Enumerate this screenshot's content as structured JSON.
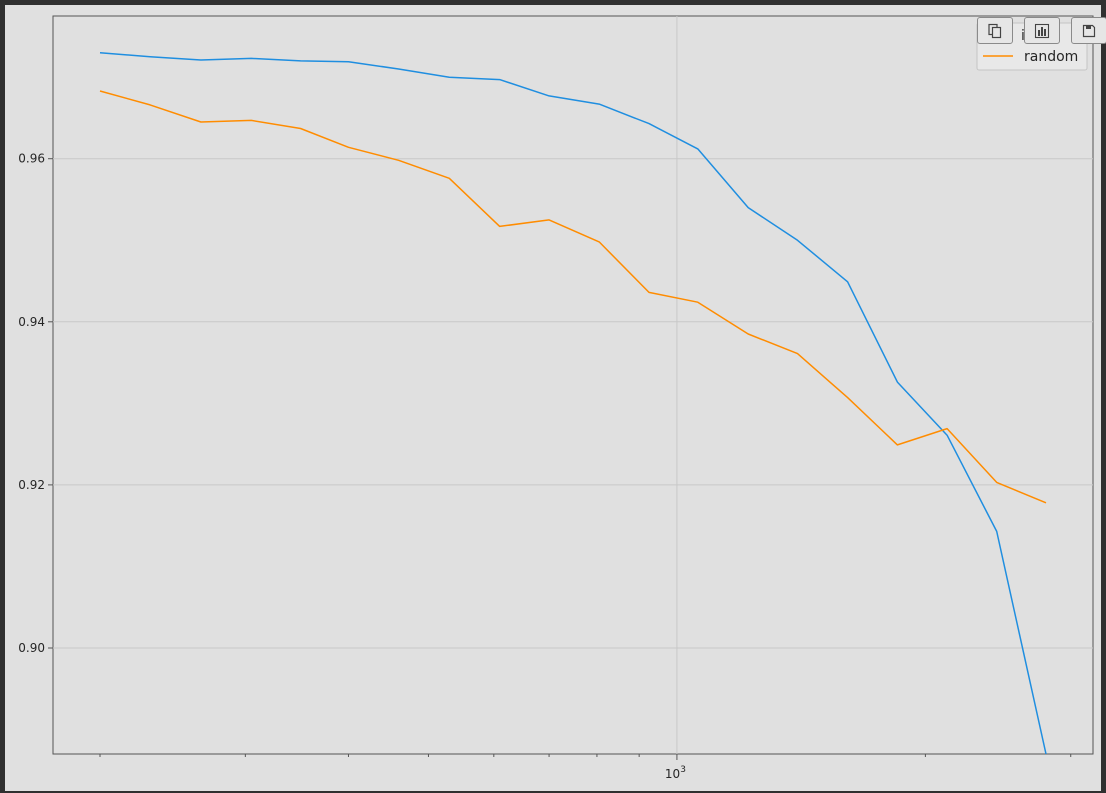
{
  "toolbar": {
    "copy_icon": "copy-icon",
    "chart_icon": "bar-chart-icon",
    "save_icon": "save-icon"
  },
  "chart_data": {
    "type": "line",
    "title": "",
    "xlabel": "",
    "ylabel": "",
    "xscale": "log",
    "ylim": [
      0.887,
      0.9775
    ],
    "grid": true,
    "legend": "top-right",
    "x": [
      200,
      230,
      265,
      305,
      350,
      400,
      460,
      530,
      610,
      700,
      805,
      925,
      1060,
      1220,
      1400,
      1610,
      1850,
      2125,
      2440,
      2800
    ],
    "major_ticks": [
      {
        "value": 1000,
        "label": "10",
        "exp": "3"
      }
    ],
    "yticks": [
      0.9,
      0.92,
      0.94,
      0.96
    ],
    "series": [
      {
        "name": "ia",
        "color": "#1f8ee0",
        "values": [
          0.973,
          0.9725,
          0.9721,
          0.9723,
          0.972,
          0.9719,
          0.971,
          0.97,
          0.9697,
          0.9677,
          0.9667,
          0.9643,
          0.9612,
          0.954,
          0.95,
          0.9449,
          0.9326,
          0.9261,
          0.9143,
          0.887
        ]
      },
      {
        "name": "random",
        "color": "#ff8c00",
        "values": [
          0.9683,
          0.9666,
          0.9645,
          0.9647,
          0.9637,
          0.9614,
          0.9598,
          0.9576,
          0.9517,
          0.9525,
          0.9498,
          0.9436,
          0.9424,
          0.9385,
          0.9361,
          0.9307,
          0.9249,
          0.9269,
          0.9203,
          0.9178
        ]
      }
    ]
  }
}
